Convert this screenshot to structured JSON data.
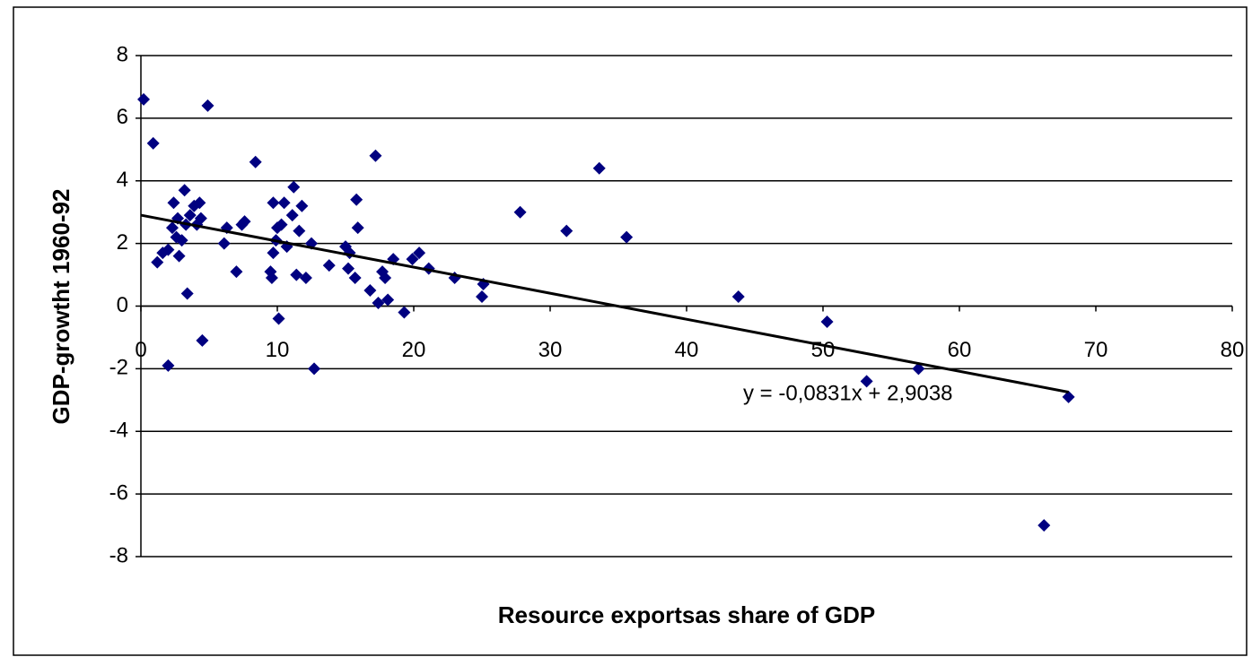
{
  "chart_data": {
    "type": "scatter",
    "xlabel": "Resource exportsas share of GDP",
    "ylabel": "GDP-growtht 1960-92",
    "color": "#000080",
    "x": [
      0.2,
      0.9,
      1.2,
      1.6,
      2.0,
      2.0,
      2.3,
      2.4,
      2.6,
      2.7,
      2.8,
      3.0,
      3.2,
      3.3,
      3.4,
      3.6,
      3.9,
      4.1,
      4.3,
      4.4,
      4.5,
      4.9,
      6.1,
      6.3,
      7.0,
      7.4,
      7.6,
      8.4,
      9.5,
      9.6,
      9.7,
      9.7,
      9.9,
      10.0,
      10.1,
      10.3,
      10.5,
      10.7,
      11.1,
      11.2,
      11.4,
      11.6,
      11.8,
      12.1,
      12.5,
      12.7,
      13.8,
      15.0,
      15.2,
      15.3,
      15.7,
      15.8,
      15.9,
      16.8,
      17.2,
      17.4,
      17.7,
      17.9,
      18.1,
      18.5,
      19.3,
      19.9,
      20.4,
      21.1,
      23.0,
      25.0,
      25.1,
      27.8,
      31.2,
      33.6,
      35.6,
      43.8,
      50.3,
      53.2,
      57.0,
      66.2,
      68.0
    ],
    "values": [
      6.6,
      5.2,
      1.4,
      1.7,
      -1.9,
      1.8,
      2.5,
      3.3,
      2.2,
      2.8,
      1.6,
      2.1,
      3.7,
      2.6,
      0.4,
      2.9,
      3.2,
      2.6,
      3.3,
      2.8,
      -1.1,
      6.4,
      2.0,
      2.5,
      1.1,
      2.6,
      2.7,
      4.6,
      1.1,
      0.9,
      1.7,
      3.3,
      2.1,
      2.5,
      -0.4,
      2.6,
      3.3,
      1.9,
      2.9,
      3.8,
      1.0,
      2.4,
      3.2,
      0.9,
      2.0,
      -2.0,
      1.3,
      1.9,
      1.2,
      1.7,
      0.9,
      3.4,
      2.5,
      0.5,
      4.8,
      0.1,
      1.1,
      0.9,
      0.2,
      1.5,
      -0.2,
      1.5,
      1.7,
      1.2,
      0.9,
      0.3,
      0.7,
      3.0,
      2.4,
      4.4,
      2.2,
      0.3,
      -0.5,
      -2.4,
      -2.0,
      -7.0,
      -2.9
    ],
    "trendline": {
      "slope": -0.0831,
      "intercept": 2.9038,
      "xrange": [
        0,
        68
      ],
      "label": "y = -0,0831x + 2,9038"
    },
    "xlim": [
      0,
      80
    ],
    "xticks": [
      0,
      10,
      20,
      30,
      40,
      50,
      60,
      70,
      80
    ],
    "ylim": [
      -8,
      8
    ],
    "yticks": [
      -8,
      -6,
      -4,
      -2,
      0,
      2,
      4,
      6,
      8
    ],
    "grid": true
  }
}
